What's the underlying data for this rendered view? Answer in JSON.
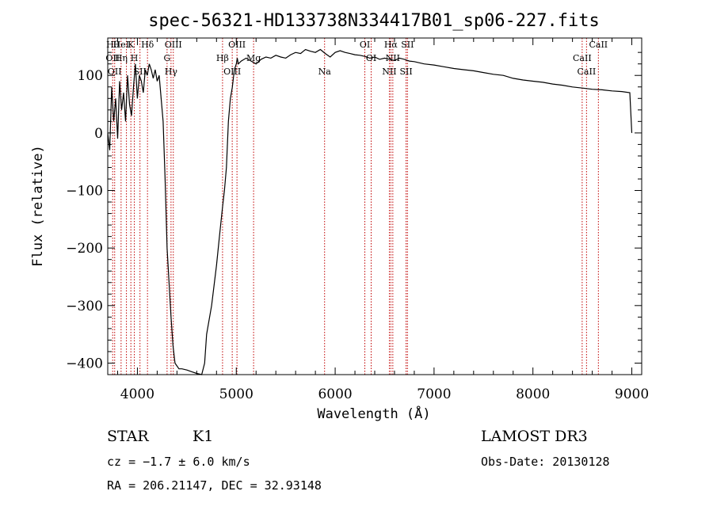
{
  "chart_data": {
    "type": "line",
    "title": "spec-56321-HD133738N334417B01_sp06-227.fits",
    "xlabel": "Wavelength (Å)",
    "ylabel": "Flux (relative)",
    "xlim": [
      3700,
      9100
    ],
    "ylim": [
      -420,
      165
    ],
    "x_ticks": [
      4000,
      5000,
      6000,
      7000,
      8000,
      9000
    ],
    "y_ticks": [
      -400,
      -300,
      -200,
      -100,
      0,
      100
    ],
    "x_tick_labels": [
      "4000",
      "5000",
      "6000",
      "7000",
      "8000",
      "9000"
    ],
    "y_tick_labels": [
      "−400",
      "−300",
      "−200",
      "−100",
      "0",
      "100"
    ],
    "series": [
      {
        "name": "spectrum",
        "x": [
          3700,
          3720,
          3740,
          3760,
          3780,
          3800,
          3820,
          3840,
          3860,
          3880,
          3900,
          3920,
          3940,
          3960,
          3980,
          4000,
          4020,
          4040,
          4060,
          4080,
          4100,
          4120,
          4140,
          4160,
          4180,
          4200,
          4220,
          4240,
          4260,
          4280,
          4300,
          4320,
          4340,
          4360,
          4380,
          4400,
          4420,
          4450,
          4500,
          4550,
          4600,
          4650,
          4680,
          4700,
          4750,
          4800,
          4830,
          4860,
          4880,
          4900,
          4920,
          4940,
          4960,
          4980,
          5000,
          5010,
          5020,
          5050,
          5100,
          5150,
          5200,
          5250,
          5300,
          5350,
          5400,
          5450,
          5500,
          5550,
          5600,
          5650,
          5700,
          5750,
          5800,
          5850,
          5900,
          5950,
          6000,
          6050,
          6100,
          6150,
          6200,
          6250,
          6300,
          6350,
          6400,
          6450,
          6500,
          6550,
          6600,
          6650,
          6700,
          6750,
          6800,
          6900,
          7000,
          7100,
          7200,
          7300,
          7400,
          7500,
          7600,
          7700,
          7800,
          7900,
          8000,
          8100,
          8200,
          8300,
          8400,
          8500,
          8600,
          8700,
          8800,
          8900,
          8980,
          9000
        ],
        "y": [
          0,
          -30,
          80,
          20,
          60,
          -10,
          90,
          40,
          70,
          20,
          100,
          50,
          30,
          80,
          120,
          60,
          100,
          90,
          70,
          110,
          100,
          120,
          110,
          95,
          110,
          90,
          100,
          60,
          20,
          -80,
          -200,
          -260,
          -320,
          -370,
          -400,
          -405,
          -410,
          -410,
          -412,
          -415,
          -418,
          -420,
          -400,
          -350,
          -300,
          -230,
          -180,
          -130,
          -100,
          -60,
          20,
          60,
          80,
          110,
          120,
          130,
          120,
          125,
          130,
          125,
          120,
          128,
          132,
          130,
          135,
          132,
          130,
          136,
          140,
          138,
          145,
          142,
          140,
          145,
          138,
          132,
          140,
          143,
          140,
          138,
          136,
          135,
          133,
          130,
          132,
          128,
          130,
          128,
          126,
          130,
          128,
          125,
          124,
          120,
          118,
          115,
          112,
          110,
          108,
          105,
          102,
          100,
          95,
          92,
          90,
          88,
          85,
          83,
          80,
          78,
          76,
          75,
          73,
          72,
          70,
          0
        ]
      }
    ],
    "lines": [
      {
        "x": 3750,
        "labels": [
          "Hθ",
          "OII"
        ]
      },
      {
        "x": 3770,
        "labels": [
          "OII"
        ]
      },
      {
        "x": 3835,
        "labels": [
          "HeI",
          "Hη"
        ]
      },
      {
        "x": 3889,
        "labels": []
      },
      {
        "x": 3934,
        "labels": [
          "K"
        ]
      },
      {
        "x": 3969,
        "labels": [
          "H"
        ]
      },
      {
        "x": 4026,
        "labels": [
          "SII"
        ]
      },
      {
        "x": 4102,
        "labels": [
          "Hδ"
        ]
      },
      {
        "x": 4300,
        "labels": [
          "G"
        ]
      },
      {
        "x": 4340,
        "labels": [
          "Hγ"
        ]
      },
      {
        "x": 4363,
        "labels": [
          "OIII"
        ]
      },
      {
        "x": 4861,
        "labels": [
          "Hβ"
        ]
      },
      {
        "x": 4959,
        "labels": [
          "OIII"
        ]
      },
      {
        "x": 5007,
        "labels": [
          "OIII"
        ]
      },
      {
        "x": 5175,
        "labels": [
          "Mg"
        ]
      },
      {
        "x": 5893,
        "labels": [
          "Na"
        ]
      },
      {
        "x": 6300,
        "labels": [
          "OI"
        ]
      },
      {
        "x": 6364,
        "labels": [
          "OI"
        ]
      },
      {
        "x": 6548,
        "labels": [
          "NII"
        ]
      },
      {
        "x": 6563,
        "labels": [
          "Hα"
        ]
      },
      {
        "x": 6583,
        "labels": [
          "NII"
        ]
      },
      {
        "x": 6717,
        "labels": [
          "SII"
        ]
      },
      {
        "x": 6731,
        "labels": [
          "SII"
        ]
      },
      {
        "x": 8498,
        "labels": [
          "CaII"
        ]
      },
      {
        "x": 8542,
        "labels": [
          "CaII"
        ]
      },
      {
        "x": 8662,
        "labels": [
          "CaII"
        ]
      }
    ],
    "line_color": "#c00000",
    "spectrum_color": "#000000"
  },
  "footer": {
    "object_class": "STAR",
    "subclass": "K1",
    "survey": "LAMOST DR3",
    "cz": "cz = −1.7 ± 6.0 km/s",
    "obs_date": "Obs-Date: 20130128",
    "coords": "RA = 206.21147, DEC =  32.93148"
  }
}
